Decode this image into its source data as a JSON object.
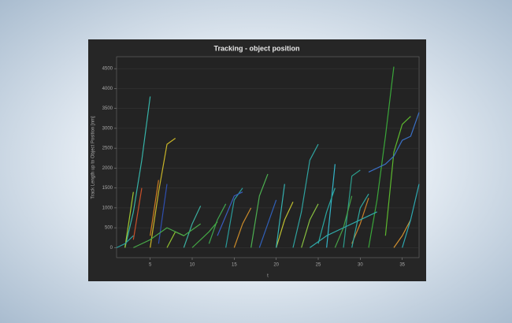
{
  "chart_data": {
    "type": "line",
    "title": "Tracking - object position",
    "x_label": "t",
    "y_label": "Track Length up to Object Position [nm]",
    "xlim": [
      1,
      37
    ],
    "ylim": [
      -250,
      4800
    ],
    "xticks": [
      5,
      10,
      15,
      20,
      25,
      30,
      35
    ],
    "yticks": [
      0,
      500,
      1000,
      1500,
      2000,
      2500,
      3000,
      3500,
      4000,
      4500
    ],
    "series": [
      {
        "color": "#36b3a8",
        "x": [
          2,
          3,
          4,
          5
        ],
        "values": [
          0,
          900,
          2200,
          3800
        ]
      },
      {
        "color": "#c8b428",
        "x": [
          5,
          6,
          7,
          8
        ],
        "values": [
          0,
          1400,
          2600,
          2750
        ]
      },
      {
        "color": "#3aa63a",
        "x": [
          31,
          32,
          33,
          34
        ],
        "values": [
          0,
          1200,
          2800,
          4550
        ]
      },
      {
        "color": "#5cb82e",
        "x": [
          33,
          34,
          35,
          36
        ],
        "values": [
          300,
          2400,
          3100,
          3300
        ]
      },
      {
        "color": "#3a6fc4",
        "x": [
          31,
          33,
          34,
          35,
          36,
          37
        ],
        "values": [
          1900,
          2100,
          2300,
          2700,
          2800,
          3400
        ]
      },
      {
        "color": "#2fa3a0",
        "x": [
          22,
          23,
          24,
          25
        ],
        "values": [
          0,
          900,
          2200,
          2600
        ]
      },
      {
        "color": "#33b5c8",
        "x": [
          26,
          27
        ],
        "values": [
          0,
          2100
        ]
      },
      {
        "color": "#2c9c8c",
        "x": [
          28,
          29,
          30
        ],
        "values": [
          0,
          1800,
          1950
        ]
      },
      {
        "color": "#4caf50",
        "x": [
          17,
          18,
          19
        ],
        "values": [
          0,
          1300,
          1850
        ]
      },
      {
        "color": "#c8502a",
        "x": [
          3,
          4
        ],
        "values": [
          200,
          1500
        ]
      },
      {
        "color": "#d07a20",
        "x": [
          5,
          6
        ],
        "values": [
          300,
          1700
        ]
      },
      {
        "color": "#2f4fb0",
        "x": [
          6,
          7
        ],
        "values": [
          100,
          1600
        ]
      },
      {
        "color": "#a0c830",
        "x": [
          2,
          3
        ],
        "values": [
          0,
          1400
        ]
      },
      {
        "color": "#3bb0a0",
        "x": [
          9,
          10,
          11
        ],
        "values": [
          0,
          600,
          1050
        ]
      },
      {
        "color": "#3fa650",
        "x": [
          12,
          13,
          14
        ],
        "values": [
          100,
          700,
          1100
        ]
      },
      {
        "color": "#2a9a9a",
        "x": [
          14,
          15,
          16
        ],
        "values": [
          0,
          1200,
          1500
        ]
      },
      {
        "color": "#c98a2a",
        "x": [
          15,
          16,
          17
        ],
        "values": [
          0,
          600,
          1000
        ]
      },
      {
        "color": "#3a5cc0",
        "x": [
          13,
          15,
          16
        ],
        "values": [
          300,
          1300,
          1400
        ]
      },
      {
        "color": "#c0c030",
        "x": [
          20,
          21,
          22
        ],
        "values": [
          0,
          700,
          1150
        ]
      },
      {
        "color": "#34b0b0",
        "x": [
          20,
          21
        ],
        "values": [
          0,
          1600
        ]
      },
      {
        "color": "#88c040",
        "x": [
          23,
          24,
          25
        ],
        "values": [
          0,
          700,
          1100
        ]
      },
      {
        "color": "#2aa6a0",
        "x": [
          25,
          26,
          27
        ],
        "values": [
          100,
          900,
          1500
        ]
      },
      {
        "color": "#46a046",
        "x": [
          27,
          28,
          29
        ],
        "values": [
          0,
          500,
          1300
        ]
      },
      {
        "color": "#c8802a",
        "x": [
          29,
          30,
          31
        ],
        "values": [
          100,
          600,
          1250
        ]
      },
      {
        "color": "#30a8a0",
        "x": [
          29,
          30,
          31
        ],
        "values": [
          0,
          1000,
          1350
        ]
      },
      {
        "color": "#d09030",
        "x": [
          34,
          35,
          36
        ],
        "values": [
          0,
          300,
          700
        ]
      },
      {
        "color": "#2ea8b0",
        "x": [
          35,
          36,
          37
        ],
        "values": [
          0,
          700,
          1600
        ]
      },
      {
        "color": "#90c030",
        "x": [
          7,
          8,
          9
        ],
        "values": [
          0,
          400,
          300
        ]
      },
      {
        "color": "#44a844",
        "x": [
          10,
          11,
          12,
          13
        ],
        "values": [
          0,
          200,
          400,
          650
        ]
      },
      {
        "color": "#3060b8",
        "x": [
          18,
          19,
          20
        ],
        "values": [
          0,
          600,
          1200
        ]
      },
      {
        "color": "#2aa0a0",
        "x": [
          1,
          2,
          3
        ],
        "values": [
          0,
          100,
          300
        ]
      },
      {
        "color": "#30aaaa",
        "x": [
          24,
          26,
          28,
          30,
          32
        ],
        "values": [
          0,
          300,
          500,
          700,
          900
        ]
      },
      {
        "color": "#48a848",
        "x": [
          3,
          5,
          7,
          9,
          11
        ],
        "values": [
          0,
          200,
          500,
          300,
          600
        ]
      }
    ]
  }
}
